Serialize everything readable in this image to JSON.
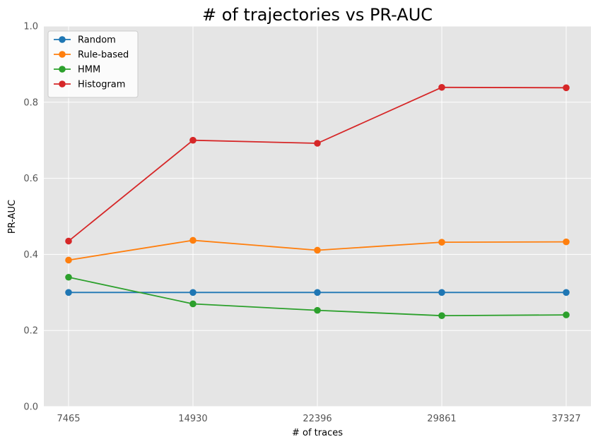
{
  "chart_data": {
    "type": "line",
    "title": "# of trajectories vs PR-AUC",
    "xlabel": "# of traces",
    "ylabel": "PR-AUC",
    "x": [
      7465,
      14930,
      22396,
      29861,
      37327
    ],
    "x_tick_labels": [
      "7465",
      "14930",
      "22396",
      "29861",
      "37327"
    ],
    "ylim": [
      0.0,
      1.0
    ],
    "y_ticks": [
      0.0,
      0.2,
      0.4,
      0.6,
      0.8,
      1.0
    ],
    "y_tick_labels": [
      "0.0",
      "0.2",
      "0.4",
      "0.6",
      "0.8",
      "1.0"
    ],
    "grid": true,
    "legend_position": "top-left",
    "series": [
      {
        "name": "Random",
        "color": "#1f77b4",
        "values": [
          0.3,
          0.3,
          0.3,
          0.3,
          0.3
        ]
      },
      {
        "name": "Rule-based",
        "color": "#ff7f0e",
        "values": [
          0.385,
          0.437,
          0.411,
          0.432,
          0.433
        ]
      },
      {
        "name": "HMM",
        "color": "#2ca02c",
        "values": [
          0.34,
          0.27,
          0.253,
          0.239,
          0.241
        ]
      },
      {
        "name": "Histogram",
        "color": "#d62728",
        "values": [
          0.435,
          0.7,
          0.692,
          0.839,
          0.838
        ]
      }
    ]
  },
  "style": {
    "plot_background": "#e5e5e5",
    "grid_color": "#ffffff"
  }
}
